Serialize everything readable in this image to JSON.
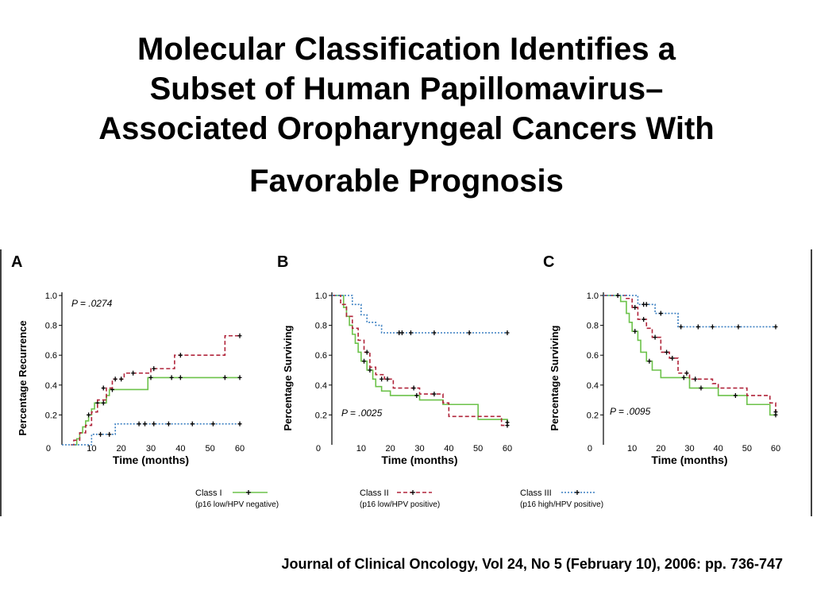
{
  "slide": {
    "title_lines": [
      "Molecular Classification Identifies a",
      "Subset of Human Papillomavirus–",
      "Associated Oropharyngeal Cancers With",
      "Favorable Prognosis"
    ],
    "citation": "Journal of Clinical Oncology, Vol 24, No 5 (February 10), 2006: pp. 736-747"
  },
  "legend": [
    {
      "name": "Class I",
      "sub": "(p16 low/HPV negative)",
      "color": "#6cc24a",
      "dash": "solid"
    },
    {
      "name": "Class II",
      "sub": "(p16 low/HPV positive)",
      "color": "#b0243a",
      "dash": "dashed"
    },
    {
      "name": "Class III",
      "sub": "(p16 high/HPV positive)",
      "color": "#3a7fc1",
      "dash": "dotted"
    }
  ],
  "chart_data": [
    {
      "type": "line",
      "panel_label": "A",
      "ylabel": "Percentage Recurrence",
      "xlabel": "Time (months)",
      "pvalue": "P = .0274",
      "xlim": [
        0,
        60
      ],
      "ylim": [
        0,
        1.0
      ],
      "xticks": [
        "0",
        "10",
        "20",
        "30",
        "40",
        "50",
        "60"
      ],
      "yticks": [
        "0",
        "0.2",
        "0.4",
        "0.6",
        "0.8",
        "1.0"
      ],
      "series": [
        {
          "name": "Class I",
          "x": [
            4,
            5,
            6,
            7,
            8,
            9,
            10,
            11,
            13,
            15,
            16,
            18,
            28,
            29,
            60
          ],
          "y": [
            0,
            0.04,
            0.08,
            0.12,
            0.16,
            0.2,
            0.24,
            0.28,
            0.28,
            0.33,
            0.37,
            0.37,
            0.37,
            0.45,
            0.45
          ],
          "censor_x": [
            9,
            12,
            14,
            17,
            30,
            37,
            40,
            55,
            60
          ],
          "censor_y": [
            0.2,
            0.28,
            0.28,
            0.37,
            0.45,
            0.45,
            0.45,
            0.45,
            0.45
          ]
        },
        {
          "name": "Class II",
          "x": [
            3,
            4,
            6,
            8,
            10,
            12,
            15,
            17,
            21,
            30,
            38,
            55,
            60
          ],
          "y": [
            0,
            0.03,
            0.08,
            0.13,
            0.22,
            0.3,
            0.38,
            0.44,
            0.48,
            0.51,
            0.6,
            0.73,
            0.73
          ],
          "censor_x": [
            14,
            18,
            20,
            24,
            31,
            40,
            60
          ],
          "censor_y": [
            0.38,
            0.44,
            0.44,
            0.48,
            0.51,
            0.6,
            0.73
          ]
        },
        {
          "name": "Class III",
          "x": [
            0,
            10,
            18,
            60
          ],
          "y": [
            0,
            0.07,
            0.14,
            0.14
          ],
          "censor_x": [
            13,
            16,
            26,
            28,
            31,
            36,
            44,
            51,
            60
          ],
          "censor_y": [
            0.07,
            0.07,
            0.14,
            0.14,
            0.14,
            0.14,
            0.14,
            0.14,
            0.14
          ]
        }
      ]
    },
    {
      "type": "line",
      "panel_label": "B",
      "ylabel": "Percentage Surviving",
      "xlabel": "Time (months)",
      "pvalue": "P = .0025",
      "xlim": [
        0,
        60
      ],
      "ylim": [
        0,
        1.0
      ],
      "xticks": [
        "0",
        "10",
        "20",
        "30",
        "40",
        "50",
        "60"
      ],
      "yticks": [
        "0",
        "0.2",
        "0.4",
        "0.6",
        "0.8",
        "1.0"
      ],
      "series": [
        {
          "name": "Class I",
          "x": [
            0,
            4,
            5,
            6,
            7,
            8,
            9,
            10,
            12,
            14,
            15,
            17,
            20,
            30,
            38,
            50,
            60
          ],
          "y": [
            1.0,
            0.92,
            0.86,
            0.8,
            0.74,
            0.68,
            0.62,
            0.56,
            0.5,
            0.44,
            0.39,
            0.36,
            0.33,
            0.3,
            0.27,
            0.17,
            0.15
          ],
          "censor_x": [
            11,
            13,
            29,
            60
          ],
          "censor_y": [
            0.56,
            0.5,
            0.33,
            0.15
          ]
        },
        {
          "name": "Class II",
          "x": [
            0,
            3,
            5,
            7,
            9,
            11,
            13,
            15,
            18,
            21,
            30,
            38,
            40,
            58,
            60
          ],
          "y": [
            1.0,
            0.94,
            0.86,
            0.78,
            0.7,
            0.62,
            0.52,
            0.47,
            0.44,
            0.38,
            0.34,
            0.28,
            0.19,
            0.13,
            0.13
          ],
          "censor_x": [
            12,
            17,
            19,
            28,
            35,
            60
          ],
          "censor_y": [
            0.62,
            0.44,
            0.44,
            0.38,
            0.34,
            0.13
          ]
        },
        {
          "name": "Class III",
          "x": [
            0,
            7,
            10,
            12,
            15,
            17,
            60
          ],
          "y": [
            1.0,
            0.94,
            0.87,
            0.82,
            0.8,
            0.75,
            0.75
          ],
          "censor_x": [
            23,
            24,
            27,
            35,
            47,
            60
          ],
          "censor_y": [
            0.75,
            0.75,
            0.75,
            0.75,
            0.75,
            0.75
          ]
        }
      ]
    },
    {
      "type": "line",
      "panel_label": "C",
      "ylabel": "Percentage Surviving",
      "xlabel": "Time (months)",
      "pvalue": "P = .0095",
      "xlim": [
        0,
        60
      ],
      "ylim": [
        0,
        1.0
      ],
      "xticks": [
        "0",
        "10",
        "20",
        "30",
        "40",
        "50",
        "60"
      ],
      "yticks": [
        "0",
        "0.2",
        "0.4",
        "0.6",
        "0.8",
        "1.0"
      ],
      "series": [
        {
          "name": "Class I",
          "x": [
            0,
            6,
            8,
            9,
            10,
            12,
            13,
            15,
            17,
            20,
            30,
            40,
            50,
            58,
            60
          ],
          "y": [
            1.0,
            0.96,
            0.88,
            0.82,
            0.76,
            0.7,
            0.62,
            0.56,
            0.5,
            0.45,
            0.38,
            0.33,
            0.27,
            0.2,
            0.2
          ],
          "censor_x": [
            11,
            16,
            28,
            34,
            60
          ],
          "censor_y": [
            0.76,
            0.56,
            0.45,
            0.38,
            0.2
          ]
        },
        {
          "name": "Class II",
          "x": [
            0,
            8,
            10,
            12,
            15,
            17,
            20,
            23,
            26,
            30,
            38,
            40,
            50,
            58,
            60
          ],
          "y": [
            1.0,
            0.98,
            0.92,
            0.84,
            0.78,
            0.72,
            0.62,
            0.58,
            0.48,
            0.44,
            0.41,
            0.38,
            0.33,
            0.28,
            0.22
          ],
          "censor_x": [
            11,
            14,
            18,
            22,
            24,
            29,
            32,
            46,
            60
          ],
          "censor_y": [
            0.92,
            0.84,
            0.72,
            0.62,
            0.58,
            0.48,
            0.44,
            0.33,
            0.22
          ]
        },
        {
          "name": "Class III",
          "x": [
            0,
            12,
            18,
            26,
            60
          ],
          "y": [
            1.0,
            0.94,
            0.88,
            0.79,
            0.79
          ],
          "censor_x": [
            5,
            14,
            15,
            20,
            27,
            33,
            38,
            47,
            60
          ],
          "censor_y": [
            1.0,
            0.94,
            0.94,
            0.88,
            0.79,
            0.79,
            0.79,
            0.79,
            0.79
          ]
        }
      ]
    }
  ]
}
